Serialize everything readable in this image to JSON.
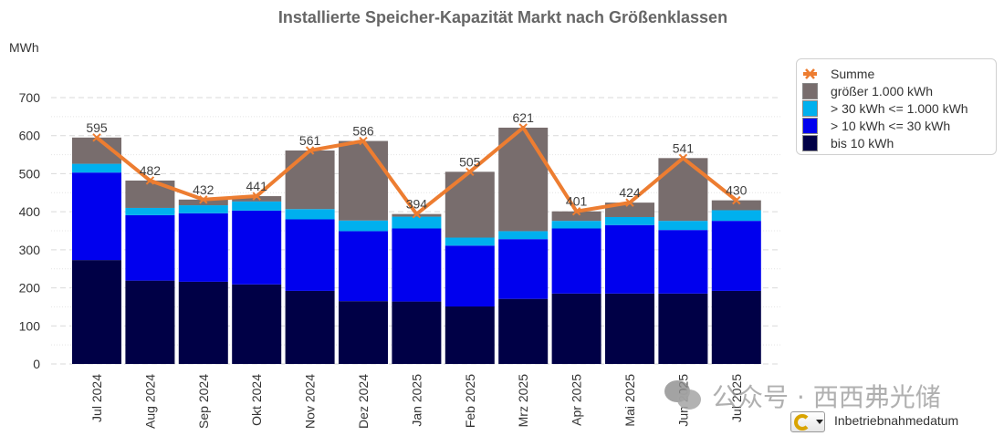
{
  "chart_data": {
    "type": "bar",
    "stacked": true,
    "title": "Installierte Speicher-Kapazität Markt nach Größenklassen",
    "ylabel": "MWh",
    "xlabel": "",
    "ylim": [
      0,
      700
    ],
    "yticks": [
      0,
      100,
      200,
      300,
      400,
      500,
      600,
      700
    ],
    "grid": true,
    "legend_position": "right",
    "categories": [
      "Jul 2024",
      "Aug 2024",
      "Sep 2024",
      "Okt 2024",
      "Nov 2024",
      "Dez 2024",
      "Jan 2025",
      "Feb 2025",
      "Mrz 2025",
      "Apr 2025",
      "Mai 2025",
      "Jun 2025",
      "Jul 2025"
    ],
    "series": [
      {
        "name": "bis 10 kWh",
        "color": "#000046",
        "values": [
          273,
          219,
          216,
          209,
          192,
          165,
          164,
          151,
          171,
          185,
          185,
          185,
          192
        ]
      },
      {
        "name": "> 10 kWh <= 30 kWh",
        "color": "#0000ee",
        "values": [
          230,
          172,
          180,
          194,
          188,
          184,
          192,
          160,
          157,
          171,
          180,
          167,
          184
        ]
      },
      {
        "name": "> 30 kWh <= 1.000 kWh",
        "color": "#00b0ee",
        "values": [
          23,
          19,
          21,
          24,
          27,
          28,
          31,
          21,
          21,
          20,
          21,
          24,
          28
        ]
      },
      {
        "name": "größer 1.000 kWh",
        "color": "#786d6d",
        "values": [
          69,
          72,
          15,
          14,
          154,
          209,
          7,
          173,
          272,
          25,
          38,
          165,
          26
        ]
      }
    ],
    "line": {
      "name": "Summe",
      "color": "#ed7d31",
      "values": [
        595,
        482,
        432,
        441,
        561,
        586,
        394,
        505,
        621,
        401,
        424,
        541,
        430
      ]
    },
    "legend": [
      "Summe",
      "größer 1.000 kWh",
      "> 30 kWh <= 1.000 kWh",
      "> 10 kWh <= 30 kWh",
      "bis 10 kWh"
    ]
  },
  "ui": {
    "pivot_field_label": "Inbetriebnahmedatum",
    "watermark_text": "公众号 · 西西弗光储"
  }
}
